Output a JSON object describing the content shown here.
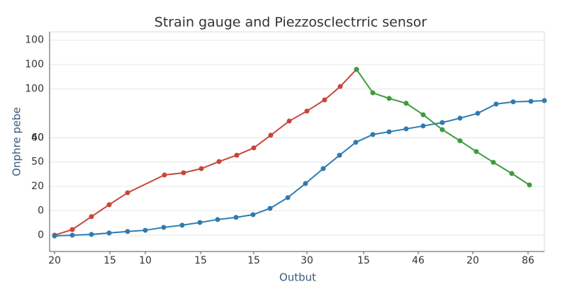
{
  "chart_data": {
    "type": "line",
    "title": "Strain gauge and Piezzosclectrric sensor",
    "x_label": "Outbut",
    "y_label": "Onphre pebe",
    "xlim": [
      0,
      698
    ],
    "ylim": [
      -6.7,
      83.4
    ],
    "xticks": [
      {
        "value": 7,
        "label": "20"
      },
      {
        "value": 85,
        "label": "15"
      },
      {
        "value": 135,
        "label": "10"
      },
      {
        "value": 213,
        "label": "15"
      },
      {
        "value": 288,
        "label": "15"
      },
      {
        "value": 363,
        "label": "30"
      },
      {
        "value": 443,
        "label": "15"
      },
      {
        "value": 520,
        "label": "46"
      },
      {
        "value": 597,
        "label": "20"
      },
      {
        "value": 675,
        "label": "86"
      }
    ],
    "yticks": [
      0,
      {
        "value": 10,
        "label": "0"
      },
      {
        "value": 20,
        "label": "20"
      },
      {
        "value": 30,
        "label": "50"
      },
      {
        "value": 40,
        "label": "60"
      },
      40,
      {
        "value": 60,
        "label": "100"
      },
      {
        "value": 70,
        "label": "100"
      },
      {
        "value": 80,
        "label": "100"
      }
    ],
    "grid": true,
    "series": [
      {
        "color": "#c8453a",
        "x": [
          7,
          32,
          59,
          84,
          110,
          162,
          189,
          214,
          239,
          264,
          288,
          312,
          338,
          363,
          388,
          410,
          433
        ],
        "values": [
          0,
          2.3,
          7.6,
          12.5,
          17.4,
          24.7,
          25.6,
          27.3,
          30.2,
          32.8,
          35.8,
          41,
          46.8,
          50.9,
          55.5,
          61,
          68
        ]
      },
      {
        "color": "#3e9a3e",
        "x": [
          433,
          456,
          479,
          503,
          527,
          554,
          579,
          602,
          626,
          652,
          677
        ],
        "values": [
          68,
          58.4,
          56.1,
          54.1,
          49.4,
          43.3,
          38.7,
          34.3,
          29.9,
          25.3,
          20.6
        ]
      },
      {
        "color": "#2f7bb0",
        "x": [
          7,
          32,
          59,
          84,
          110,
          135,
          161,
          187,
          212,
          237,
          263,
          287,
          311,
          336,
          361,
          386,
          409,
          432,
          456,
          479,
          503,
          527,
          554,
          579,
          604,
          630,
          654,
          679,
          698
        ],
        "values": [
          -0.3,
          0,
          0.3,
          0.9,
          1.5,
          2,
          3.2,
          4.1,
          5.2,
          6.4,
          7.3,
          8.4,
          11,
          15.4,
          21.2,
          27.3,
          32.8,
          38.1,
          41.3,
          42.4,
          43.6,
          44.8,
          46.2,
          48,
          50,
          53.8,
          54.7,
          54.9,
          55.2
        ]
      }
    ]
  }
}
